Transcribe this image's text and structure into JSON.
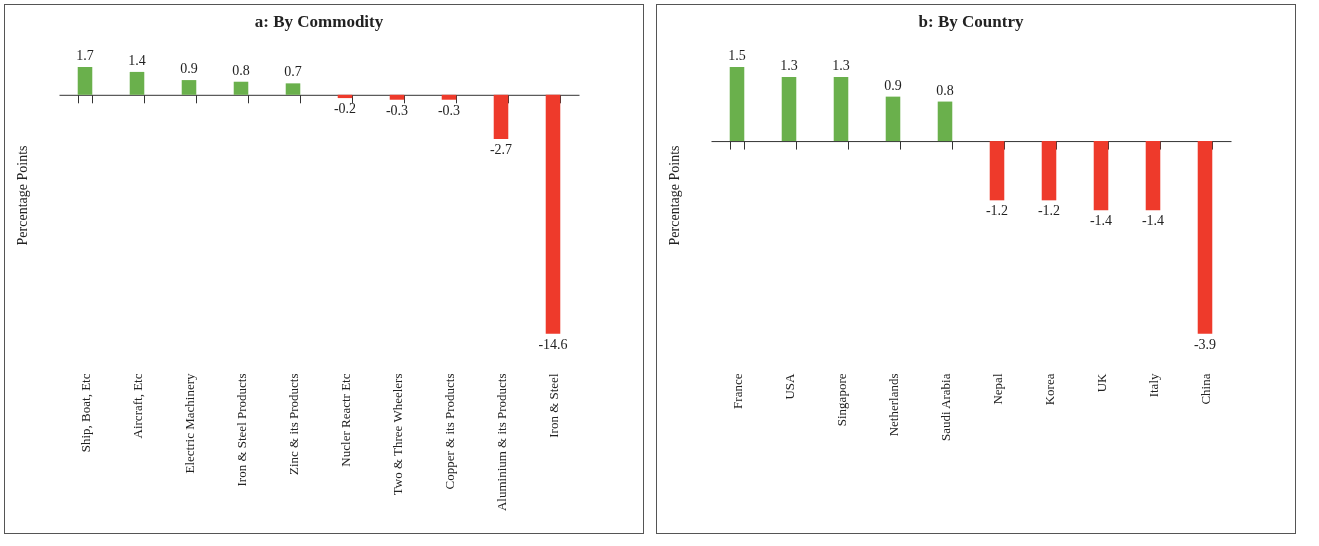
{
  "chart_data": [
    {
      "type": "bar",
      "title": "a: By Commodity",
      "ylabel": "Percentage Points",
      "categories": [
        "Ship, Boat, Etc",
        "Aircraft, Etc",
        "Electric Machinery",
        "Iron & Steel Products",
        "Zinc & its Products",
        "Nucler Reactr Etc",
        "Two & Three Wheelers",
        "Copper & its Products",
        "Aluminium & its Products",
        "Iron & Steel"
      ],
      "values": [
        1.7,
        1.4,
        0.9,
        0.8,
        0.7,
        -0.2,
        -0.3,
        -0.3,
        -2.7,
        -14.6
      ],
      "colors": [
        "#6ab04c",
        "#6ab04c",
        "#6ab04c",
        "#6ab04c",
        "#6ab04c",
        "#ee3a2b",
        "#ee3a2b",
        "#ee3a2b",
        "#ee3a2b",
        "#ee3a2b"
      ],
      "data_labels": true,
      "tick_labels": "x"
    },
    {
      "type": "bar",
      "title": "b: By Country",
      "ylabel": "Percentage Points",
      "categories": [
        "France",
        "USA",
        "Singapore",
        "Netherlands",
        "Saudi Arabia",
        "Nepal",
        "Korea",
        "UK",
        "Italy",
        "China"
      ],
      "values": [
        1.5,
        1.3,
        1.3,
        0.9,
        0.8,
        -1.2,
        -1.2,
        -1.4,
        -1.4,
        -3.9
      ],
      "colors": [
        "#6ab04c",
        "#6ab04c",
        "#6ab04c",
        "#6ab04c",
        "#6ab04c",
        "#ee3a2b",
        "#ee3a2b",
        "#ee3a2b",
        "#ee3a2b",
        "#ee3a2b"
      ],
      "data_labels": true,
      "tick_labels": "x"
    }
  ]
}
